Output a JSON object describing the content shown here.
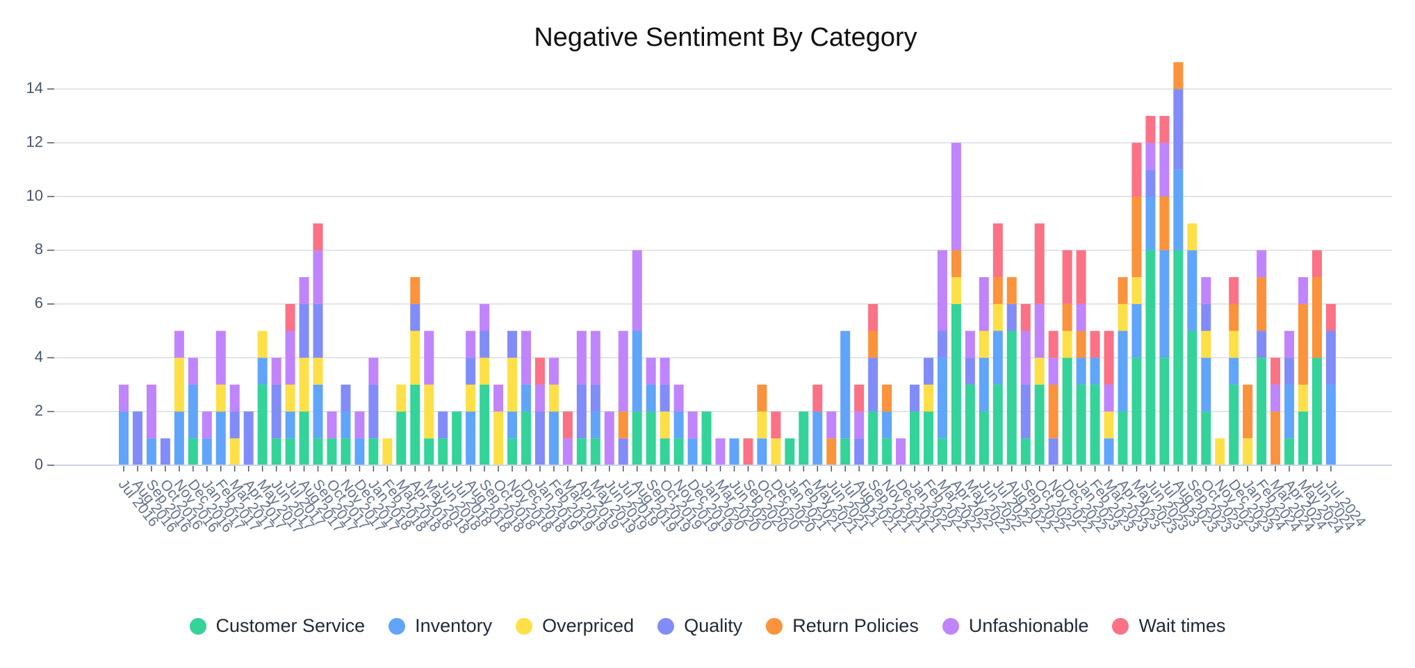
{
  "chart_data": {
    "type": "stacked_bar",
    "title": "Negative Sentiment By Category",
    "categories": [
      "Jul 2016",
      "Aug 2016",
      "Sep 2016",
      "Oct 2016",
      "Nov 2016",
      "Dec 2016",
      "Jan 2017",
      "Feb 2017",
      "Mar 2017",
      "Apr 2017",
      "May 2017",
      "Jun 2017",
      "Jul 2017",
      "Aug 2017",
      "Sep 2017",
      "Oct 2017",
      "Nov 2017",
      "Dec 2017",
      "Jan 2018",
      "Feb 2018",
      "Mar 2018",
      "Apr 2018",
      "May 2018",
      "Jun 2018",
      "Jul 2018",
      "Aug 2018",
      "Sep 2018",
      "Oct 2018",
      "Nov 2018",
      "Dec 2018",
      "Jan 2019",
      "Feb 2019",
      "Mar 2019",
      "Apr 2019",
      "May 2019",
      "Jun 2019",
      "Jul 2019",
      "Aug 2019",
      "Sep 2019",
      "Oct 2019",
      "Nov 2019",
      "Dec 2019",
      "Jan 2020",
      "Mar 2020",
      "Jun 2020",
      "Sep 2020",
      "Oct 2020",
      "Dec 2020",
      "Jan 2021",
      "Feb 2021",
      "May 2021",
      "Jun 2021",
      "Jul 2021",
      "Aug 2021",
      "Sep 2021",
      "Nov 2021",
      "Dec 2021",
      "Jan 2022",
      "Feb 2022",
      "Mar 2022",
      "Apr 2022",
      "May 2022",
      "Jun 2022",
      "Jul 2022",
      "Aug 2022",
      "Sep 2022",
      "Oct 2022",
      "Nov 2022",
      "Dec 2022",
      "Jan 2023",
      "Feb 2023",
      "Mar 2023",
      "Apr 2023",
      "May 2023",
      "Jun 2023",
      "Jul 2023",
      "Aug 2023",
      "Sep 2023",
      "Oct 2023",
      "Nov 2023",
      "Dec 2023",
      "Jan 2024",
      "Feb 2024",
      "Mar 2024",
      "Apr 2024",
      "May 2024",
      "Jun 2024",
      "Jul 2024"
    ],
    "series": [
      {
        "name": "Customer Service",
        "color": "#34d399",
        "values": [
          0,
          0,
          0,
          0,
          0,
          1,
          0,
          0,
          0,
          0,
          3,
          1,
          1,
          2,
          1,
          1,
          1,
          0,
          1,
          0,
          2,
          3,
          1,
          1,
          2,
          0,
          3,
          0,
          1,
          2,
          0,
          0,
          0,
          1,
          1,
          0,
          0,
          2,
          2,
          1,
          1,
          0,
          2,
          0,
          0,
          0,
          0,
          0,
          1,
          2,
          0,
          0,
          1,
          0,
          2,
          1,
          0,
          2,
          2,
          1,
          6,
          3,
          2,
          3,
          5,
          1,
          3,
          0,
          4,
          3,
          3,
          0,
          2,
          4,
          8,
          4,
          8,
          5,
          2,
          0,
          3,
          0,
          4,
          0,
          1,
          2,
          4,
          0
        ]
      },
      {
        "name": "Inventory",
        "color": "#60a5fa",
        "values": [
          2,
          0,
          1,
          0,
          2,
          2,
          1,
          2,
          0,
          0,
          1,
          0,
          1,
          0,
          2,
          0,
          1,
          1,
          0,
          0,
          0,
          0,
          0,
          0,
          0,
          2,
          0,
          0,
          1,
          1,
          0,
          2,
          0,
          0,
          1,
          0,
          0,
          3,
          1,
          0,
          1,
          1,
          0,
          0,
          1,
          0,
          1,
          0,
          0,
          0,
          2,
          0,
          4,
          0,
          0,
          1,
          0,
          0,
          0,
          3,
          0,
          0,
          2,
          2,
          0,
          0,
          0,
          0,
          0,
          1,
          1,
          1,
          3,
          2,
          2,
          4,
          3,
          3,
          2,
          0,
          1,
          0,
          0,
          0,
          2,
          0,
          0,
          3
        ]
      },
      {
        "name": "Overpriced",
        "color": "#fde047",
        "values": [
          0,
          0,
          0,
          0,
          2,
          0,
          0,
          1,
          1,
          0,
          1,
          0,
          1,
          2,
          1,
          0,
          0,
          0,
          0,
          1,
          1,
          2,
          2,
          0,
          0,
          1,
          1,
          2,
          2,
          0,
          0,
          1,
          0,
          0,
          0,
          0,
          0,
          0,
          0,
          1,
          0,
          0,
          0,
          0,
          0,
          0,
          1,
          1,
          0,
          0,
          0,
          0,
          0,
          0,
          0,
          0,
          0,
          0,
          1,
          0,
          1,
          0,
          1,
          1,
          0,
          0,
          1,
          0,
          1,
          0,
          0,
          1,
          1,
          1,
          0,
          0,
          0,
          1,
          1,
          1,
          1,
          1,
          0,
          0,
          0,
          1,
          0,
          0
        ]
      },
      {
        "name": "Quality",
        "color": "#818cf8",
        "values": [
          0,
          2,
          0,
          1,
          0,
          0,
          0,
          0,
          1,
          2,
          0,
          2,
          0,
          2,
          2,
          0,
          1,
          0,
          2,
          0,
          0,
          1,
          0,
          1,
          0,
          1,
          1,
          0,
          1,
          0,
          2,
          0,
          0,
          2,
          1,
          0,
          1,
          0,
          0,
          1,
          0,
          0,
          0,
          0,
          0,
          0,
          0,
          0,
          0,
          0,
          0,
          0,
          0,
          1,
          2,
          0,
          0,
          1,
          1,
          1,
          0,
          1,
          0,
          0,
          1,
          2,
          0,
          1,
          0,
          0,
          0,
          0,
          0,
          0,
          1,
          0,
          3,
          0,
          1,
          0,
          0,
          0,
          1,
          0,
          1,
          0,
          0,
          2
        ]
      },
      {
        "name": "Return Policies",
        "color": "#fb923c",
        "values": [
          0,
          0,
          0,
          0,
          0,
          0,
          0,
          0,
          0,
          0,
          0,
          0,
          0,
          0,
          0,
          0,
          0,
          0,
          0,
          0,
          0,
          1,
          0,
          0,
          0,
          0,
          0,
          0,
          0,
          0,
          0,
          0,
          0,
          0,
          0,
          0,
          1,
          0,
          0,
          0,
          0,
          0,
          0,
          0,
          0,
          0,
          1,
          0,
          0,
          0,
          0,
          1,
          0,
          0,
          1,
          1,
          0,
          0,
          0,
          0,
          1,
          0,
          0,
          1,
          1,
          0,
          0,
          2,
          1,
          1,
          0,
          0,
          1,
          3,
          0,
          2,
          1,
          0,
          0,
          0,
          1,
          2,
          2,
          2,
          0,
          3,
          3,
          0
        ]
      },
      {
        "name": "Unfashionable",
        "color": "#c084fc",
        "values": [
          1,
          0,
          2,
          0,
          1,
          1,
          1,
          2,
          1,
          0,
          0,
          1,
          2,
          1,
          2,
          1,
          0,
          1,
          1,
          0,
          0,
          0,
          2,
          0,
          0,
          1,
          1,
          1,
          0,
          2,
          1,
          1,
          1,
          2,
          2,
          2,
          3,
          3,
          1,
          1,
          1,
          1,
          0,
          1,
          0,
          0,
          0,
          0,
          0,
          0,
          0,
          1,
          0,
          1,
          0,
          0,
          1,
          0,
          0,
          3,
          4,
          1,
          2,
          0,
          0,
          2,
          2,
          1,
          0,
          1,
          0,
          1,
          0,
          0,
          1,
          2,
          0,
          0,
          1,
          0,
          0,
          0,
          1,
          1,
          1,
          1,
          0,
          0
        ]
      },
      {
        "name": "Wait times",
        "color": "#fb7185",
        "values": [
          0,
          0,
          0,
          0,
          0,
          0,
          0,
          0,
          0,
          0,
          0,
          0,
          1,
          0,
          1,
          0,
          0,
          0,
          0,
          0,
          0,
          0,
          0,
          0,
          0,
          0,
          0,
          0,
          0,
          0,
          1,
          0,
          1,
          0,
          0,
          0,
          0,
          0,
          0,
          0,
          0,
          0,
          0,
          0,
          0,
          1,
          0,
          1,
          0,
          0,
          1,
          0,
          0,
          1,
          1,
          0,
          0,
          0,
          0,
          0,
          0,
          0,
          0,
          2,
          0,
          1,
          3,
          1,
          2,
          2,
          1,
          2,
          0,
          2,
          1,
          1,
          0,
          0,
          0,
          0,
          1,
          0,
          0,
          1,
          0,
          0,
          1,
          1
        ]
      }
    ],
    "ylim": [
      0,
      15
    ],
    "yticks": [
      0,
      2,
      4,
      6,
      8,
      10,
      12,
      14
    ],
    "grid": true,
    "legend": "bottom"
  }
}
